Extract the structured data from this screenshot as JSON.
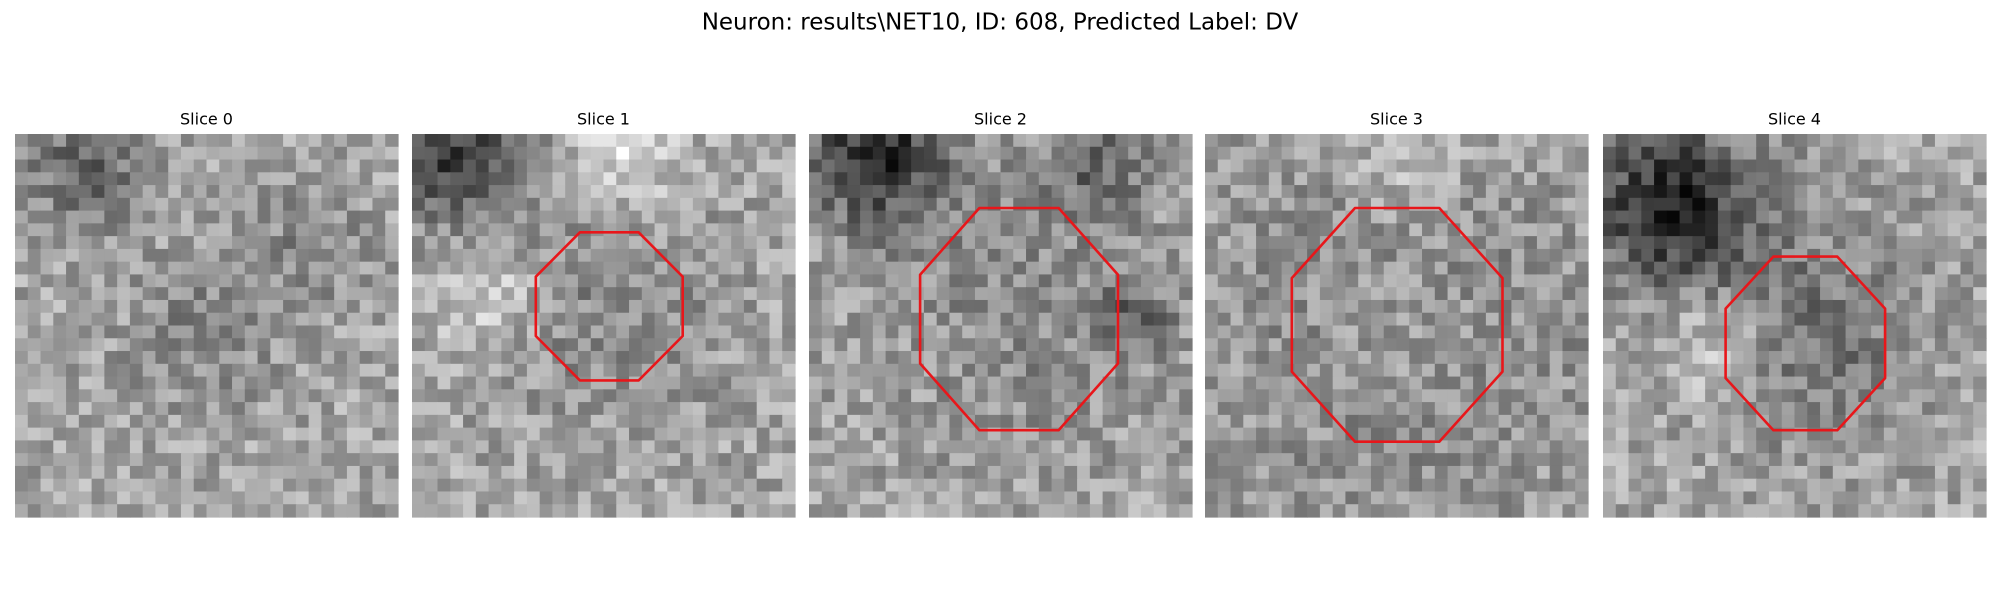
{
  "title": "Neuron: results\\NET10, ID: 608, Predicted Label: DV",
  "panels": [
    {
      "title": "Slice 0"
    },
    {
      "title": "Slice 1"
    },
    {
      "title": "Slice 2"
    },
    {
      "title": "Slice 3"
    },
    {
      "title": "Slice 4"
    }
  ]
}
